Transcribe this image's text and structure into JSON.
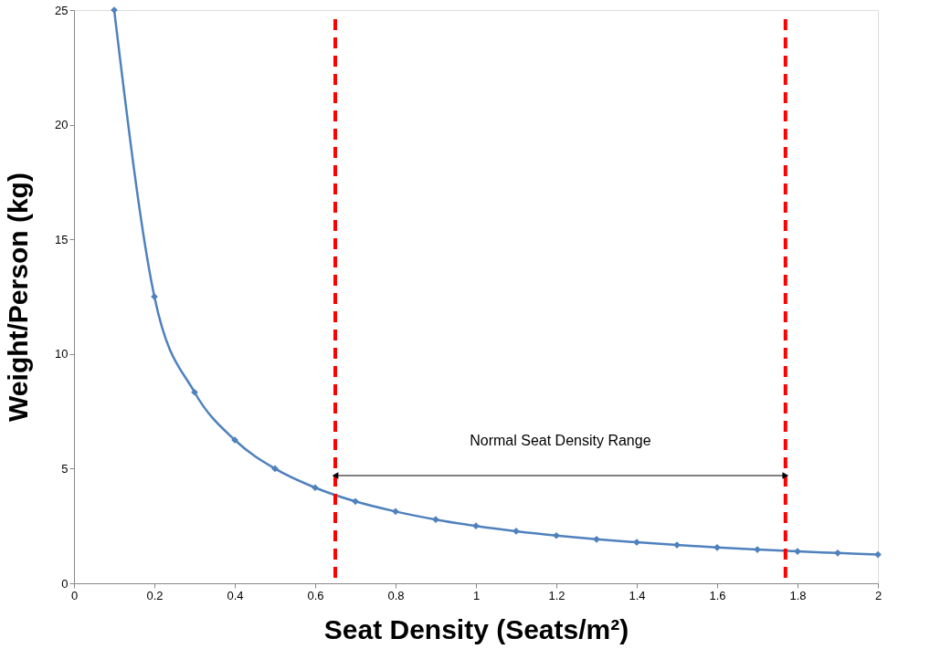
{
  "chart_data": {
    "type": "line",
    "xlabel": "Seat Density (Seats/m²)",
    "ylabel": "Weight/Person (kg)",
    "x": [
      0.1,
      0.2,
      0.3,
      0.4,
      0.5,
      0.6,
      0.7,
      0.8,
      0.9,
      1.0,
      1.1,
      1.2,
      1.3,
      1.4,
      1.5,
      1.6,
      1.7,
      1.8,
      1.9,
      2.0
    ],
    "series": [
      {
        "color": "#4f81bd",
        "values": [
          25,
          12.5,
          8.33,
          6.25,
          5,
          4.17,
          3.57,
          3.13,
          2.78,
          2.5,
          2.27,
          2.08,
          1.92,
          1.79,
          1.67,
          1.56,
          1.47,
          1.39,
          1.32,
          1.25
        ]
      }
    ],
    "xlim": [
      0,
      2
    ],
    "xticks": [
      0,
      0.2,
      0.4,
      0.6,
      0.8,
      1,
      1.2,
      1.4,
      1.6,
      1.8,
      2
    ],
    "ylim": [
      0,
      25
    ],
    "yticks": [
      0,
      5,
      10,
      15,
      20,
      25
    ],
    "grid": false,
    "marker": "diamond",
    "line_style": "solid",
    "ref_lines": [
      {
        "axis": "x",
        "value": 0.65,
        "color": "#ff0000",
        "line_style": "dashed"
      },
      {
        "axis": "x",
        "value": 1.77,
        "color": "#ff0000",
        "line_style": "dashed"
      }
    ],
    "annotations": [
      "Normal Seat Density Range"
    ]
  }
}
